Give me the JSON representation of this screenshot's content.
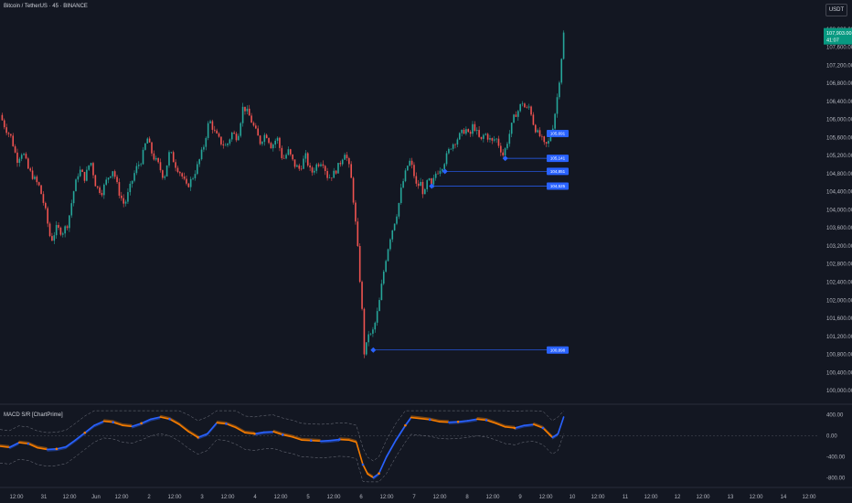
{
  "header": {
    "title": "Bitcoin / TetherUS · 45 · BINANCE",
    "currency": "USDT"
  },
  "indicator": {
    "title": "MACD S/R [ChartPrime]"
  },
  "colors": {
    "up": "#26a69a",
    "down": "#ef5350",
    "macd_up": "#2962ff",
    "macd_down": "#f57c00",
    "level": "#2962ff",
    "price_tag": "#089981",
    "background": "#131722"
  },
  "price_tag": {
    "price": "107,903.00",
    "countdown": "41:07"
  },
  "chart_data": [
    {
      "type": "candlestick",
      "title": "",
      "y_ticks": [
        "108,000.00",
        "107,600.00",
        "107,200.00",
        "106,800.00",
        "106,400.00",
        "106,000.00",
        "105,600.00",
        "105,200.00",
        "104,800.00",
        "104,400.00",
        "104,000.00",
        "103,600.00",
        "103,200.00",
        "102,800.00",
        "102,400.00",
        "102,000.00",
        "101,600.00",
        "101,200.00",
        "100,800.00",
        "100,400.00",
        "100,000.00"
      ],
      "ylim": [
        99900,
        108200
      ],
      "x_ticks": [
        "12:00",
        "31",
        "12:00",
        "Jun",
        "12:00",
        "2",
        "12:00",
        "3",
        "12:00",
        "4",
        "12:00",
        "5",
        "12:00",
        "6",
        "12:00",
        "7",
        "12:00",
        "8",
        "12:00",
        "9",
        "12:00",
        "10",
        "12:00",
        "11",
        "12:00",
        "12",
        "12:00",
        "13",
        "12:00",
        "14",
        "12:00"
      ],
      "close_path": [
        [
          0,
          106100
        ],
        [
          6,
          105800
        ],
        [
          12,
          105600
        ],
        [
          18,
          105100
        ],
        [
          24,
          105300
        ],
        [
          30,
          104900
        ],
        [
          36,
          104700
        ],
        [
          42,
          104500
        ],
        [
          48,
          104000
        ],
        [
          54,
          103300
        ],
        [
          60,
          103600
        ],
        [
          66,
          103500
        ],
        [
          72,
          103700
        ],
        [
          78,
          104400
        ],
        [
          84,
          104900
        ],
        [
          90,
          104700
        ],
        [
          96,
          105100
        ],
        [
          102,
          104500
        ],
        [
          108,
          104400
        ],
        [
          114,
          104700
        ],
        [
          120,
          104900
        ],
        [
          126,
          104400
        ],
        [
          132,
          104100
        ],
        [
          138,
          104500
        ],
        [
          144,
          104900
        ],
        [
          150,
          105100
        ],
        [
          156,
          105600
        ],
        [
          162,
          105200
        ],
        [
          168,
          105000
        ],
        [
          174,
          104700
        ],
        [
          180,
          105300
        ],
        [
          186,
          105000
        ],
        [
          192,
          104800
        ],
        [
          198,
          104500
        ],
        [
          204,
          104700
        ],
        [
          210,
          105000
        ],
        [
          216,
          105400
        ],
        [
          222,
          106000
        ],
        [
          228,
          105700
        ],
        [
          234,
          105500
        ],
        [
          240,
          105400
        ],
        [
          246,
          105700
        ],
        [
          252,
          105600
        ],
        [
          258,
          106300
        ],
        [
          264,
          106100
        ],
        [
          270,
          105800
        ],
        [
          276,
          105500
        ],
        [
          282,
          105700
        ],
        [
          288,
          105400
        ],
        [
          294,
          105600
        ],
        [
          300,
          105100
        ],
        [
          306,
          105300
        ],
        [
          312,
          105000
        ],
        [
          318,
          104900
        ],
        [
          324,
          105200
        ],
        [
          330,
          104800
        ],
        [
          336,
          105000
        ],
        [
          342,
          105100
        ],
        [
          348,
          104700
        ],
        [
          354,
          104800
        ],
        [
          360,
          105000
        ],
        [
          366,
          105300
        ],
        [
          372,
          104800
        ],
        [
          376,
          104000
        ],
        [
          380,
          103000
        ],
        [
          384,
          101800
        ],
        [
          387,
          100600
        ],
        [
          390,
          101300
        ],
        [
          394,
          101200
        ],
        [
          398,
          101500
        ],
        [
          402,
          101900
        ],
        [
          406,
          102500
        ],
        [
          410,
          103000
        ],
        [
          414,
          103400
        ],
        [
          418,
          103700
        ],
        [
          422,
          104000
        ],
        [
          426,
          104500
        ],
        [
          430,
          104800
        ],
        [
          434,
          105100
        ],
        [
          438,
          104900
        ],
        [
          442,
          104500
        ],
        [
          446,
          104600
        ],
        [
          450,
          104300
        ],
        [
          454,
          104700
        ],
        [
          458,
          104500
        ],
        [
          462,
          104800
        ],
        [
          466,
          104900
        ],
        [
          470,
          105000
        ],
        [
          474,
          105200
        ],
        [
          478,
          105400
        ],
        [
          482,
          105500
        ],
        [
          486,
          105600
        ],
        [
          490,
          105700
        ],
        [
          494,
          105800
        ],
        [
          498,
          105600
        ],
        [
          502,
          105900
        ],
        [
          506,
          105700
        ],
        [
          510,
          105500
        ],
        [
          514,
          105700
        ],
        [
          518,
          105600
        ],
        [
          522,
          105500
        ],
        [
          526,
          105600
        ],
        [
          530,
          105400
        ],
        [
          534,
          105200
        ],
        [
          538,
          105500
        ],
        [
          542,
          105800
        ],
        [
          546,
          106100
        ],
        [
          550,
          106200
        ],
        [
          554,
          106400
        ],
        [
          558,
          106200
        ],
        [
          562,
          106300
        ],
        [
          566,
          105900
        ],
        [
          570,
          105700
        ],
        [
          574,
          105600
        ],
        [
          578,
          105400
        ],
        [
          582,
          105500
        ],
        [
          586,
          105800
        ],
        [
          590,
          106300
        ],
        [
          594,
          107000
        ],
        [
          598,
          107900
        ]
      ],
      "levels": [
        {
          "value": 105691,
          "label": "105,691"
        },
        {
          "value": 105141,
          "label": "105,141"
        },
        {
          "value": 104851,
          "label": "104,851"
        },
        {
          "value": 104525,
          "label": "104,525"
        },
        {
          "value": 100898,
          "label": "100,898"
        }
      ],
      "x_range": [
        0,
        868
      ],
      "right_edge_x": 600
    },
    {
      "type": "line",
      "title": "MACD S/R [ChartPrime]",
      "y_ticks": [
        "400.00",
        "0.00",
        "-400.00",
        "-800.00"
      ],
      "ylim": [
        -900,
        500
      ],
      "series": [
        {
          "values": [
            [
              0,
              -200
            ],
            [
              10,
              -220
            ],
            [
              20,
              -130
            ],
            [
              30,
              -150
            ],
            [
              40,
              -230
            ],
            [
              50,
              -260
            ],
            [
              60,
              -250
            ],
            [
              70,
              -210
            ],
            [
              80,
              -80
            ],
            [
              90,
              60
            ],
            [
              100,
              200
            ],
            [
              110,
              280
            ],
            [
              120,
              260
            ],
            [
              130,
              200
            ],
            [
              140,
              180
            ],
            [
              150,
              240
            ],
            [
              160,
              320
            ],
            [
              170,
              360
            ],
            [
              180,
              320
            ],
            [
              190,
              220
            ],
            [
              200,
              80
            ],
            [
              210,
              -30
            ],
            [
              220,
              40
            ],
            [
              230,
              250
            ],
            [
              240,
              230
            ],
            [
              250,
              160
            ],
            [
              260,
              60
            ],
            [
              270,
              40
            ],
            [
              280,
              70
            ],
            [
              290,
              80
            ],
            [
              300,
              20
            ],
            [
              310,
              -20
            ],
            [
              320,
              -80
            ],
            [
              330,
              -90
            ],
            [
              340,
              -100
            ],
            [
              350,
              -90
            ],
            [
              360,
              -70
            ],
            [
              370,
              -80
            ],
            [
              378,
              -120
            ],
            [
              385,
              -550
            ],
            [
              390,
              -730
            ],
            [
              396,
              -800
            ],
            [
              402,
              -720
            ],
            [
              410,
              -400
            ],
            [
              420,
              -80
            ],
            [
              430,
              200
            ],
            [
              436,
              350
            ],
            [
              446,
              330
            ],
            [
              456,
              310
            ],
            [
              466,
              270
            ],
            [
              476,
              260
            ],
            [
              486,
              270
            ],
            [
              496,
              290
            ],
            [
              506,
              320
            ],
            [
              516,
              300
            ],
            [
              526,
              240
            ],
            [
              536,
              170
            ],
            [
              546,
              150
            ],
            [
              556,
              200
            ],
            [
              566,
              220
            ],
            [
              576,
              150
            ],
            [
              586,
              -30
            ],
            [
              592,
              40
            ],
            [
              598,
              360
            ]
          ]
        }
      ],
      "x_range": [
        0,
        868
      ],
      "right_edge_x": 600
    }
  ]
}
